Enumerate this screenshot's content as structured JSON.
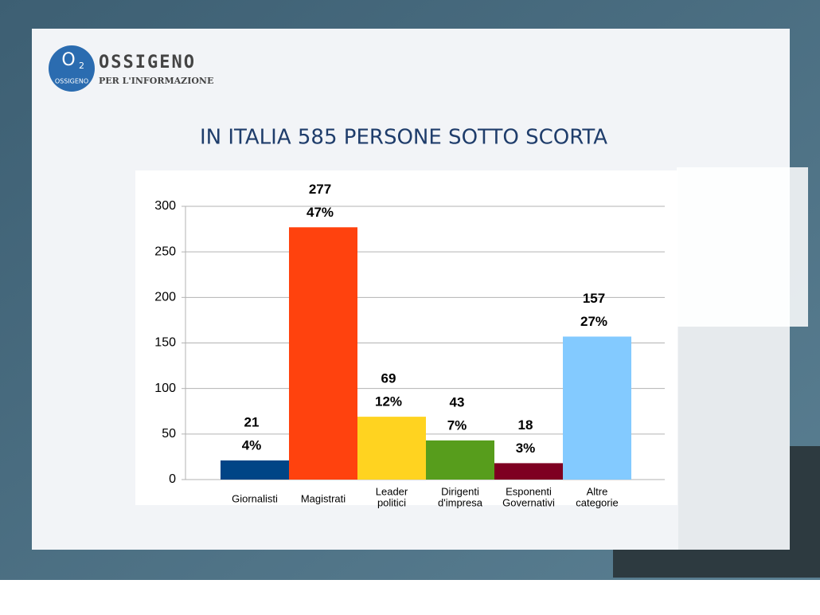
{
  "logo": {
    "symbol": "O",
    "subscript": "2",
    "badge": "OSSIGENO",
    "name": "OSSIGENO",
    "tagline": "PER L'INFORMAZIONE"
  },
  "chart_data": {
    "type": "bar",
    "title": "IN ITALIA 585 PERSONE SOTTO SCORTA",
    "categories": [
      [
        "Giornalisti"
      ],
      [
        "Magistrati"
      ],
      [
        "Leader",
        "politici"
      ],
      [
        "Dirigenti",
        "d'impresa"
      ],
      [
        "Esponenti",
        "Governativi"
      ],
      [
        "Altre",
        "categorie"
      ]
    ],
    "values": [
      21,
      277,
      69,
      43,
      18,
      157
    ],
    "percent_labels": [
      "4%",
      "47%",
      "12%",
      "7%",
      "3%",
      "27%"
    ],
    "colors": [
      "#004586",
      "#ff420e",
      "#ffd320",
      "#579d1c",
      "#7e0021",
      "#83caff"
    ],
    "ylim": [
      0,
      300
    ],
    "yticks": [
      0,
      50,
      100,
      150,
      200,
      250,
      300
    ],
    "grid": true
  }
}
